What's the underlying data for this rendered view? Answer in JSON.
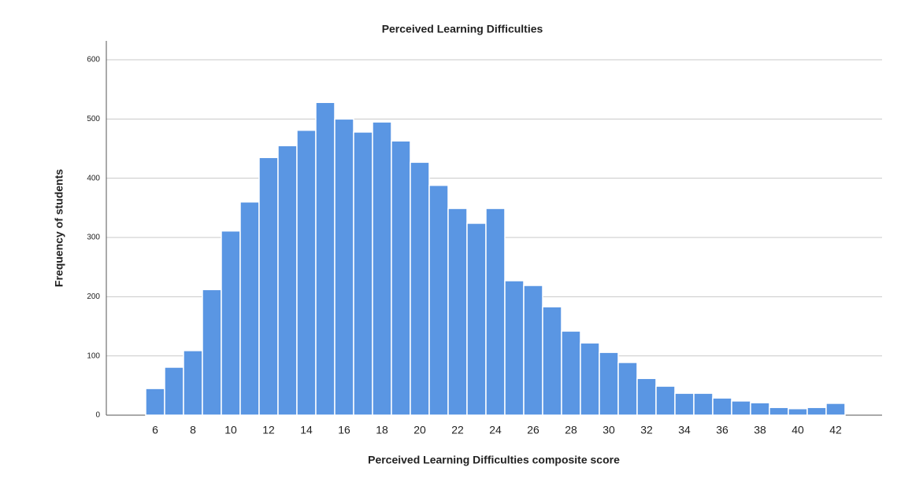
{
  "chart_data": {
    "type": "bar",
    "title": "Perceived Learning Difficulties",
    "x_label": "Perceived Learning Difficulties composite score",
    "y_label": "Frequency of students",
    "categories": [
      6,
      null,
      8,
      null,
      10,
      null,
      12,
      null,
      14,
      null,
      16,
      null,
      18,
      null,
      20,
      null,
      22,
      null,
      24,
      null,
      26,
      null,
      28,
      null,
      30,
      null,
      32,
      null,
      34,
      null,
      36,
      null,
      38,
      null,
      40,
      null,
      42
    ],
    "values": [
      45,
      81,
      109,
      212,
      311,
      360,
      435,
      455,
      481,
      528,
      500,
      478,
      495,
      463,
      427,
      388,
      349,
      324,
      349,
      227,
      219,
      183,
      142,
      122,
      106,
      89,
      62,
      49,
      37,
      37,
      29,
      24,
      21,
      13,
      11,
      13,
      20
    ],
    "color": "#5a96e3",
    "ylim": [
      0,
      600
    ],
    "yticks": [
      0,
      100,
      200,
      300,
      400,
      500,
      600
    ],
    "grid": true
  }
}
